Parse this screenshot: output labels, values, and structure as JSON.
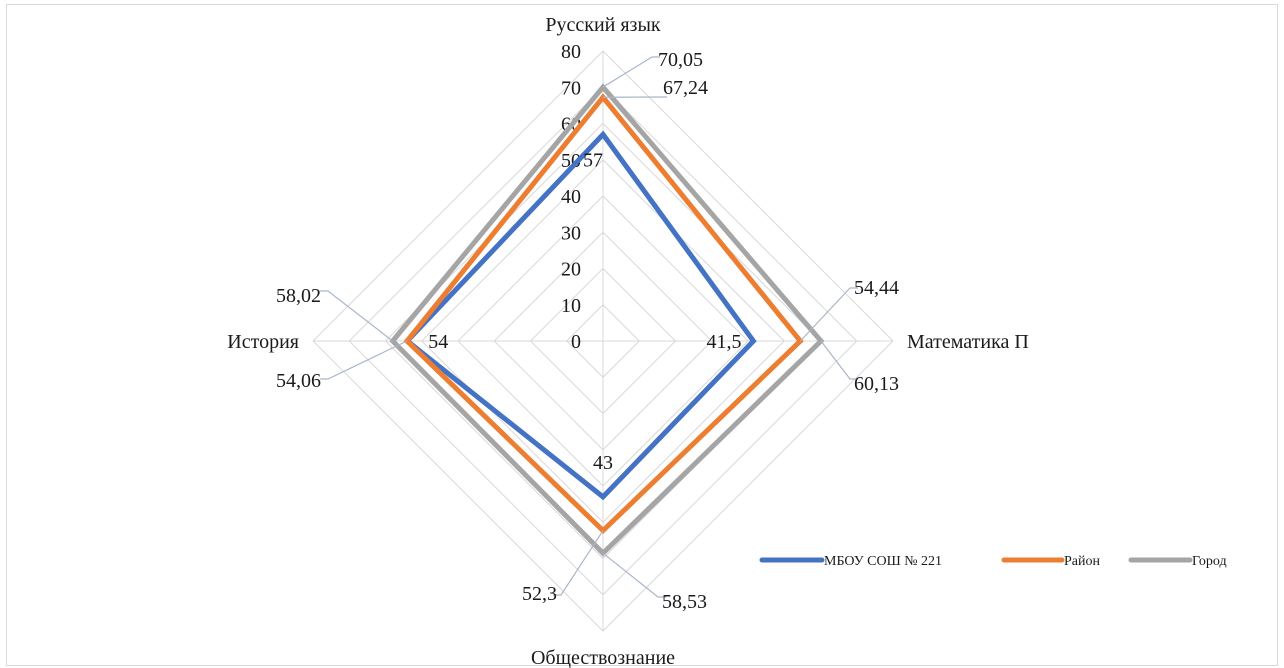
{
  "chart_data": {
    "type": "radar",
    "categories": [
      "Русский язык",
      "Математика П",
      "Обществознание",
      "История"
    ],
    "series": [
      {
        "name": "МБОУ СОШ № 221",
        "values": [
          57,
          41.5,
          43,
          54
        ],
        "labels": [
          "57",
          "41,5",
          "43",
          "54"
        ],
        "color": "#4472c4"
      },
      {
        "name": "Район",
        "values": [
          67.24,
          54.44,
          52.3,
          54.06
        ],
        "labels": [
          "67,24",
          "54,44",
          "52,3",
          "54,06"
        ],
        "color": "#ed7d31"
      },
      {
        "name": "Город",
        "values": [
          70.05,
          60.13,
          58.53,
          58.02
        ],
        "labels": [
          "70,05",
          "60,13",
          "58,53",
          "58,02"
        ],
        "color": "#a5a5a5"
      }
    ],
    "radial_range": [
      0,
      80
    ],
    "ticks": [
      "0",
      "10",
      "20",
      "30",
      "40",
      "50",
      "60",
      "70",
      "80"
    ],
    "grid": true,
    "legend_position": "bottom-right"
  }
}
